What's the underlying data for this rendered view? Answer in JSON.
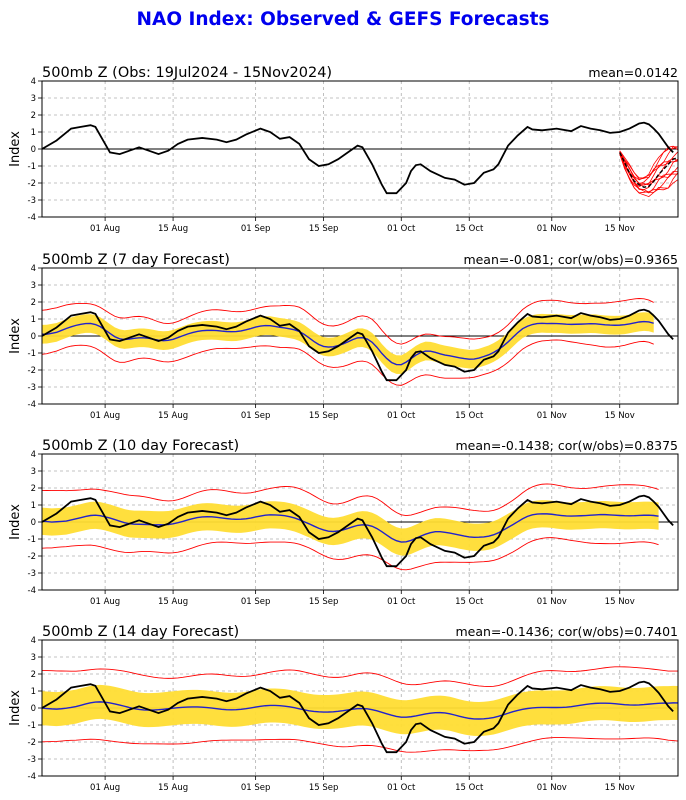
{
  "title": "NAO Index: Observed & GEFS Forecasts",
  "colors": {
    "title": "#0000ee",
    "observed": "#000000",
    "forecast_mean": "#2222cc",
    "ensemble_members": "#ff0000",
    "spread_band": "#ffdd33",
    "grid": "#b0b0b0"
  },
  "chart_data": [
    {
      "type": "line",
      "title": "500mb Z (Obs: 19Jul2024 - 15Nov2024)",
      "stat": "mean=0.0142",
      "ylabel": "Index",
      "ylim": [
        -4,
        4
      ],
      "yticks": [
        4,
        3,
        2,
        1,
        0,
        -1,
        -2,
        -3,
        -4
      ],
      "xlim_day": [
        0,
        131
      ],
      "xticks": [
        {
          "day": 13,
          "label": "01 Aug"
        },
        {
          "day": 27,
          "label": "15 Aug"
        },
        {
          "day": 44,
          "label": "01 Sep"
        },
        {
          "day": 58,
          "label": "15 Sep"
        },
        {
          "day": 74,
          "label": "01 Oct"
        },
        {
          "day": 88,
          "label": "15 Oct"
        },
        {
          "day": 105,
          "label": "01 Nov"
        },
        {
          "day": 119,
          "label": "15 Nov"
        }
      ],
      "grid": true,
      "observed": [
        [
          0,
          0
        ],
        [
          3,
          0.5
        ],
        [
          6,
          1.2
        ],
        [
          8,
          1.3
        ],
        [
          10,
          1.4
        ],
        [
          11,
          1.3
        ],
        [
          13,
          0.3
        ],
        [
          14,
          -0.2
        ],
        [
          16,
          -0.3
        ],
        [
          18,
          -0.1
        ],
        [
          20,
          0.1
        ],
        [
          22,
          -0.1
        ],
        [
          24,
          -0.3
        ],
        [
          26,
          -0.1
        ],
        [
          28,
          0.3
        ],
        [
          30,
          0.55
        ],
        [
          33,
          0.65
        ],
        [
          36,
          0.55
        ],
        [
          38,
          0.4
        ],
        [
          40,
          0.55
        ],
        [
          42,
          0.85
        ],
        [
          45,
          1.2
        ],
        [
          47,
          1.0
        ],
        [
          49,
          0.6
        ],
        [
          51,
          0.7
        ],
        [
          53,
          0.3
        ],
        [
          55,
          -0.6
        ],
        [
          57,
          -1.0
        ],
        [
          59,
          -0.9
        ],
        [
          61,
          -0.6
        ],
        [
          63,
          -0.2
        ],
        [
          65,
          0.2
        ],
        [
          66,
          0.1
        ],
        [
          68,
          -0.9
        ],
        [
          70,
          -2.1
        ],
        [
          71,
          -2.6
        ],
        [
          73,
          -2.6
        ],
        [
          75,
          -2.0
        ],
        [
          76,
          -1.3
        ],
        [
          77,
          -0.95
        ],
        [
          78,
          -0.9
        ],
        [
          80,
          -1.3
        ],
        [
          83,
          -1.7
        ],
        [
          85,
          -1.8
        ],
        [
          87,
          -2.1
        ],
        [
          89,
          -2.0
        ],
        [
          91,
          -1.4
        ],
        [
          93,
          -1.2
        ],
        [
          94,
          -0.9
        ],
        [
          96,
          0.2
        ],
        [
          98,
          0.8
        ],
        [
          100,
          1.3
        ],
        [
          101,
          1.15
        ],
        [
          103,
          1.1
        ],
        [
          106,
          1.2
        ],
        [
          109,
          1.05
        ],
        [
          111,
          1.35
        ],
        [
          113,
          1.2
        ],
        [
          115,
          1.1
        ],
        [
          117,
          0.95
        ],
        [
          119,
          1.0
        ],
        [
          121,
          1.2
        ],
        [
          123,
          1.5
        ],
        [
          124,
          1.55
        ],
        [
          125,
          1.45
        ],
        [
          126,
          1.2
        ],
        [
          127,
          0.9
        ],
        [
          128,
          0.5
        ],
        [
          129,
          0.1
        ],
        [
          130,
          -0.2
        ]
      ],
      "forecast_mean": [
        [
          119,
          -0.2
        ],
        [
          120,
          -0.8
        ],
        [
          121,
          -1.4
        ],
        [
          122,
          -1.9
        ],
        [
          123,
          -2.1
        ],
        [
          124,
          -2.25
        ],
        [
          125,
          -2.2
        ],
        [
          126,
          -1.9
        ],
        [
          127,
          -1.5
        ],
        [
          128,
          -1.2
        ],
        [
          129,
          -0.9
        ],
        [
          130,
          -0.6
        ],
        [
          131,
          -0.5
        ]
      ],
      "ensemble_range": [
        [
          119,
          -0.3,
          -0.1
        ],
        [
          120,
          -1.2,
          -0.5
        ],
        [
          121,
          -1.8,
          -0.9
        ],
        [
          122,
          -2.3,
          -1.4
        ],
        [
          123,
          -2.6,
          -1.7
        ],
        [
          124,
          -2.7,
          -1.6
        ],
        [
          125,
          -2.8,
          -1.4
        ],
        [
          126,
          -2.7,
          -0.9
        ],
        [
          127,
          -2.5,
          -0.5
        ],
        [
          128,
          -2.4,
          -0.2
        ],
        [
          129,
          -2.3,
          0.1
        ],
        [
          130,
          -2.0,
          0.3
        ],
        [
          131,
          -1.8,
          0.3
        ]
      ]
    },
    {
      "type": "line",
      "title": "500mb Z (7 day Forecast)",
      "stat": "mean=-0.081; cor(w/obs)=0.9365",
      "ylabel": "Index",
      "ylim": [
        -4,
        4
      ],
      "yticks": [
        4,
        3,
        2,
        1,
        0,
        -1,
        -2,
        -3,
        -4
      ],
      "xlim_day": [
        0,
        131
      ],
      "xticks": [
        {
          "day": 13,
          "label": "01 Aug"
        },
        {
          "day": 27,
          "label": "15 Aug"
        },
        {
          "day": 44,
          "label": "01 Sep"
        },
        {
          "day": 58,
          "label": "15 Sep"
        },
        {
          "day": 74,
          "label": "01 Oct"
        },
        {
          "day": 88,
          "label": "15 Oct"
        },
        {
          "day": 105,
          "label": "01 Nov"
        },
        {
          "day": 119,
          "label": "15 Nov"
        }
      ],
      "grid": true,
      "observed_ref": 0,
      "forecast_end_day": 126,
      "blend": 0.65,
      "blend_shift": 1,
      "blend_smooth": 2,
      "spread": 0.55,
      "outer": 1.2
    },
    {
      "type": "line",
      "title": "500mb Z (10 day Forecast)",
      "stat": "mean=-0.1438; cor(w/obs)=0.8375",
      "ylabel": "Index",
      "ylim": [
        -4,
        4
      ],
      "yticks": [
        4,
        3,
        2,
        1,
        0,
        -1,
        -2,
        -3,
        -4
      ],
      "xlim_day": [
        0,
        131
      ],
      "xticks": [
        {
          "day": 13,
          "label": "01 Aug"
        },
        {
          "day": 27,
          "label": "15 Aug"
        },
        {
          "day": 44,
          "label": "01 Sep"
        },
        {
          "day": 58,
          "label": "15 Sep"
        },
        {
          "day": 74,
          "label": "01 Oct"
        },
        {
          "day": 88,
          "label": "15 Oct"
        },
        {
          "day": 105,
          "label": "01 Nov"
        },
        {
          "day": 119,
          "label": "15 Nov"
        }
      ],
      "grid": true,
      "observed_ref": 0,
      "forecast_end_day": 127,
      "blend": 0.45,
      "blend_shift": 2,
      "blend_smooth": 3,
      "spread": 0.8,
      "outer": 1.6
    },
    {
      "type": "line",
      "title": "500mb Z (14 day Forecast)",
      "stat": "mean=-0.1436; cor(w/obs)=0.7401",
      "ylabel": "Index",
      "ylim": [
        -4,
        4
      ],
      "yticks": [
        4,
        3,
        2,
        1,
        0,
        -1,
        -2,
        -3,
        -4
      ],
      "xlim_day": [
        0,
        131
      ],
      "xticks": [
        {
          "day": 13,
          "label": "01 Aug"
        },
        {
          "day": 27,
          "label": "15 Aug"
        },
        {
          "day": 44,
          "label": "01 Sep"
        },
        {
          "day": 58,
          "label": "15 Sep"
        },
        {
          "day": 74,
          "label": "01 Oct"
        },
        {
          "day": 88,
          "label": "15 Oct"
        },
        {
          "day": 105,
          "label": "01 Nov"
        },
        {
          "day": 119,
          "label": "15 Nov"
        }
      ],
      "grid": true,
      "observed_ref": 0,
      "forecast_end_day": 131,
      "blend": 0.25,
      "blend_shift": 3,
      "blend_smooth": 4,
      "spread": 1.0,
      "outer": 2.0
    }
  ]
}
